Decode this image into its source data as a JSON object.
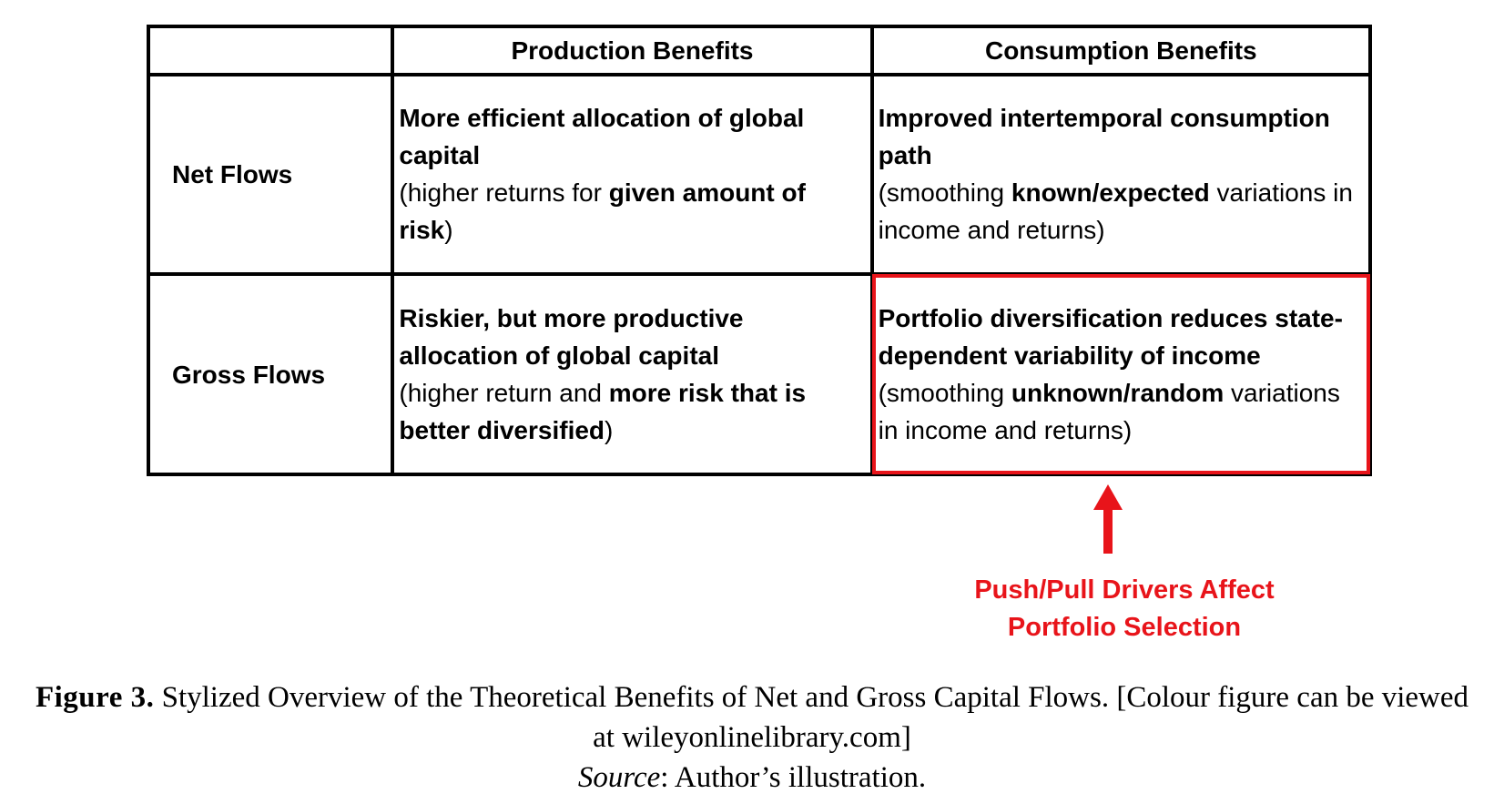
{
  "table": {
    "col_headers": [
      "",
      "Production Benefits",
      "Consumption Benefits"
    ],
    "rows": [
      {
        "label": "Net Flows",
        "production": {
          "bold_1": "More efficient allocation of global capital",
          "plain_1": "(higher returns for ",
          "bold_2": "given amount of risk",
          "plain_2": ")"
        },
        "consumption": {
          "bold_1": "Improved intertemporal consumption path",
          "plain_1": "(smoothing ",
          "bold_2": "known/expected",
          "plain_2": " variations in income and returns)"
        }
      },
      {
        "label": "Gross Flows",
        "production": {
          "bold_1": "Riskier, but more productive allocation of global capital",
          "plain_1": "(higher return and ",
          "bold_2": "more risk that is better diversified",
          "plain_2": ")"
        },
        "consumption": {
          "bold_1": "Portfolio diversification reduces state-dependent variability of income",
          "plain_1": " (smoothing ",
          "bold_2": "unknown/random",
          "plain_2": " variations in income and returns)"
        }
      }
    ]
  },
  "annotation": {
    "line_1": "Push/Pull Drivers Affect",
    "line_2": "Portfolio Selection"
  },
  "caption": {
    "figure_label": "Figure 3.",
    "text": "Stylized Overview of the Theoretical Benefits of Net and Gross Capital Flows. [Colour figure can be viewed at wileyonlinelibrary.com]",
    "source_label": "Source",
    "source_text": ": Author’s illustration."
  },
  "colors": {
    "highlight": "#e8141a",
    "border": "#000000"
  },
  "icons": {
    "arrow": "up-arrow-icon"
  }
}
